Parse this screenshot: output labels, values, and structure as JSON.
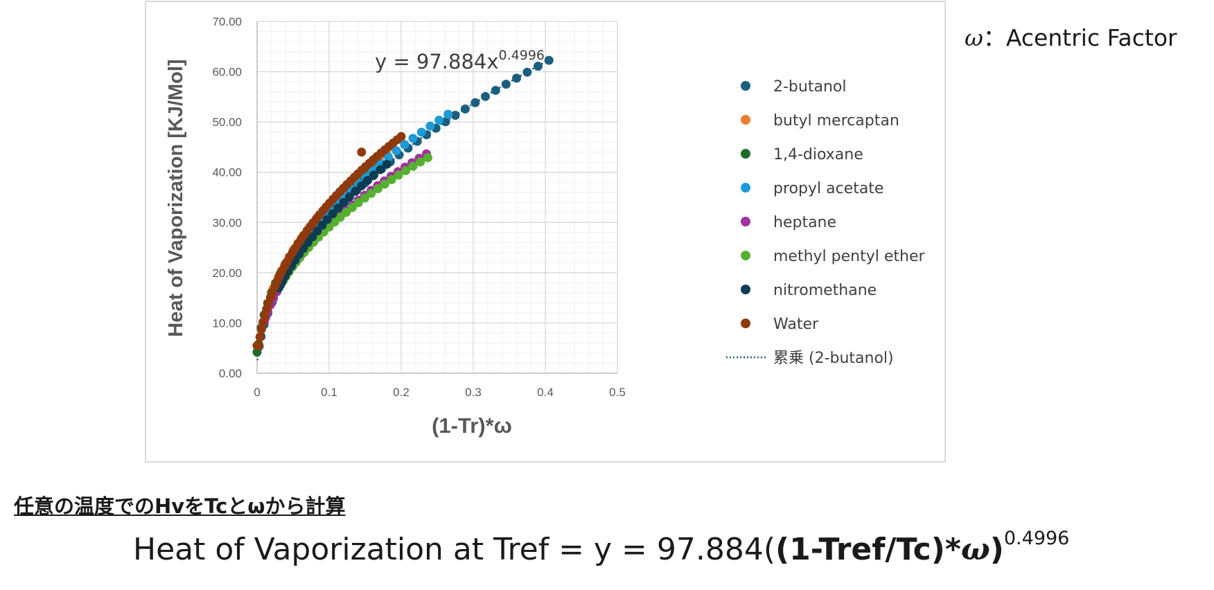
{
  "chart_data": {
    "type": "scatter",
    "xlabel": "(1-Tr)*ω",
    "ylabel": "Heat of Vaporization [KJ/Mol]",
    "xlim": [
      0,
      0.5
    ],
    "ylim": [
      0,
      70
    ],
    "x_ticks": [
      "0",
      "0.1",
      "0.2",
      "0.3",
      "0.4",
      "0.5"
    ],
    "y_ticks": [
      "0.00",
      "10.00",
      "20.00",
      "30.00",
      "40.00",
      "50.00",
      "60.00",
      "70.00"
    ],
    "grid": true,
    "legend_position": "right",
    "trendline": {
      "label": "累乗 (2-butanol)",
      "equation_base": "y = 97.884x",
      "equation_exp": "0.4996",
      "coef": 97.884,
      "power": 0.4996,
      "color": "#1b5f7e"
    },
    "series": [
      {
        "name": "2-butanol",
        "color": "#1b5f7e",
        "x_start": 0.003,
        "x_end": 0.405,
        "n": 38,
        "coef": 97.8,
        "power": 0.4996
      },
      {
        "name": "butyl mercaptan",
        "color": "#ed7d31",
        "x_start": 0.02,
        "x_end": 0.18,
        "n": 24,
        "coef": 97.0,
        "power": 0.46
      },
      {
        "name": "1,4-dioxane",
        "color": "#1e6b2e",
        "x_start": 0.0,
        "x_end": 0.17,
        "n": 24,
        "coef": 93.0,
        "power": 0.45,
        "y0": 4.2
      },
      {
        "name": "propyl acetate",
        "color": "#1e9bd7",
        "x_start": 0.04,
        "x_end": 0.265,
        "n": 26,
        "coef": 97.5,
        "power": 0.48
      },
      {
        "name": "heptane",
        "color": "#a033a0",
        "x_start": 0.01,
        "x_end": 0.235,
        "n": 32,
        "coef": 85.0,
        "power": 0.46
      },
      {
        "name": "methyl pentyl ether",
        "color": "#56b030",
        "x_start": 0.035,
        "x_end": 0.237,
        "n": 28,
        "coef": 82.0,
        "power": 0.45
      },
      {
        "name": "nitromethane",
        "color": "#0d3b52",
        "x_start": 0.03,
        "x_end": 0.18,
        "n": 24,
        "coef": 98.0,
        "power": 0.5
      },
      {
        "name": "Water",
        "color": "#8f3a0c",
        "x_start": 0.0,
        "x_end": 0.2,
        "n": 50,
        "coef": 102.0,
        "power": 0.48,
        "y0": 5.5,
        "extra_point": [
          0.145,
          44.0
        ]
      }
    ]
  },
  "notes": {
    "omega_symbol": "ω",
    "omega_text": "：Acentric Factor"
  },
  "section_title": "任意の温度でのHvをTcとωから計算",
  "formula": {
    "prefix": "Heat of Vaporization at Tref = y = 97.884(",
    "bold_part": "(1-Tref/Tc)*",
    "omega": "ω",
    "close": ")",
    "exponent": "0.4996"
  }
}
